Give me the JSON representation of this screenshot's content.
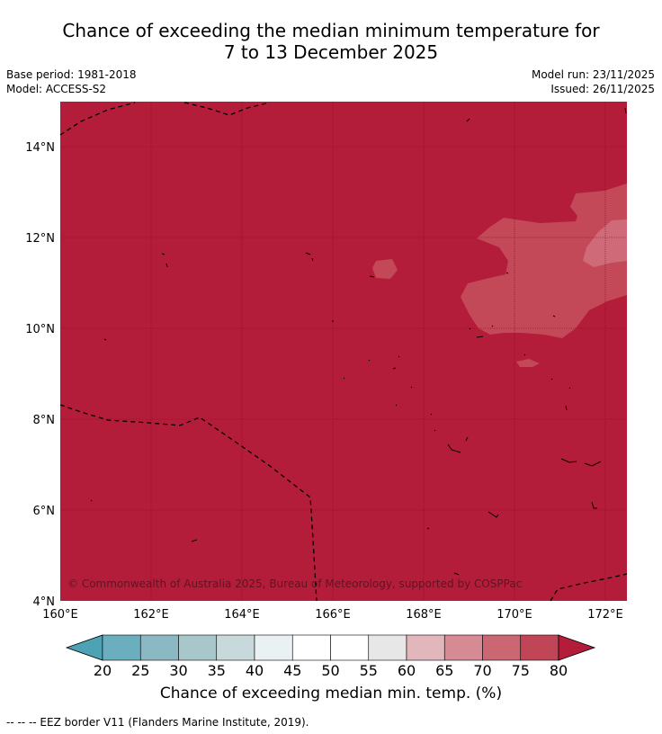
{
  "title_line1": "Chance of exceeding the median minimum temperature for",
  "title_line2": "7 to 13 December 2025",
  "meta": {
    "base_period": "Base period: 1981-2018",
    "model": "Model: ACCESS-S2",
    "model_run": "Model run: 23/11/2025",
    "issued": "Issued: 26/11/2025"
  },
  "map": {
    "lat_labels": [
      "14°N",
      "12°N",
      "10°N",
      "8°N",
      "6°N",
      "4°N"
    ],
    "lon_labels": [
      "160°E",
      "162°E",
      "164°E",
      "166°E",
      "168°E",
      "170°E",
      "172°E"
    ],
    "copyright": "© Commonwealth of Australia 2025, Bureau of Meteorology, supported by COSPPac",
    "colors": {
      "background": "#b31d3a",
      "band_75_80": "#c34858",
      "band_70_75": "#cf6b78"
    }
  },
  "colorbar": {
    "ticks": [
      "20",
      "25",
      "30",
      "35",
      "40",
      "45",
      "50",
      "55",
      "60",
      "65",
      "70",
      "75",
      "80"
    ],
    "colors": [
      "#4da2b3",
      "#6bafbf",
      "#8ab8c3",
      "#a8c7cb",
      "#c8d9dc",
      "#e9f1f2",
      "#ffffff",
      "#ffffff",
      "#e7e7e7",
      "#e2b7bc",
      "#d68a94",
      "#cb6673",
      "#c04556",
      "#b31d3a"
    ],
    "label": "Chance of exceeding median min. temp. (%)"
  },
  "footer": "--  --  -- EEZ border V11 (Flanders Marine Institute, 2019)."
}
